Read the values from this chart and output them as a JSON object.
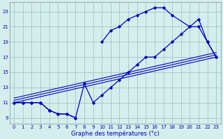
{
  "background_color": "#d4eeed",
  "line_color": "#0000bb",
  "grid_color": "#9abcbc",
  "xlabel": "Graphe des températures (°c)",
  "xlim": [
    -0.5,
    23.5
  ],
  "ylim": [
    8.2,
    24.2
  ],
  "xticks": [
    0,
    1,
    2,
    3,
    4,
    5,
    6,
    7,
    8,
    9,
    10,
    11,
    12,
    13,
    14,
    15,
    16,
    17,
    18,
    19,
    20,
    21,
    22,
    23
  ],
  "yticks": [
    9,
    11,
    13,
    15,
    17,
    19,
    21,
    23
  ],
  "line_zigzag": {
    "x": [
      0,
      1,
      2,
      3,
      4,
      5,
      6,
      7,
      8,
      9,
      10,
      11,
      12,
      13,
      14,
      15,
      16,
      17,
      18,
      19,
      20,
      21,
      22,
      23
    ],
    "y": [
      11,
      11,
      11,
      11,
      10,
      9.5,
      9.5,
      9,
      13.5,
      11,
      12,
      13,
      14,
      15,
      16,
      17,
      17,
      18,
      19,
      20,
      21,
      22,
      19,
      17
    ]
  },
  "line_upper": {
    "x": [
      0,
      1,
      2,
      3,
      4,
      5,
      6,
      7,
      10,
      11,
      12,
      13,
      14,
      15,
      16,
      17,
      18,
      20,
      21,
      22,
      23
    ],
    "y": [
      11,
      11,
      11,
      11,
      10,
      9.5,
      9.5,
      9,
      19,
      20.5,
      21,
      22,
      22.5,
      23,
      23.5,
      23.5,
      22.5,
      21,
      21,
      19,
      17
    ]
  },
  "line_mid1": {
    "x": [
      0,
      23
    ],
    "y": [
      11,
      17
    ]
  },
  "line_mid2": {
    "x": [
      0,
      23
    ],
    "y": [
      11.3,
      17.3
    ]
  },
  "line_mid3": {
    "x": [
      0,
      23
    ],
    "y": [
      11.6,
      17.6
    ]
  }
}
